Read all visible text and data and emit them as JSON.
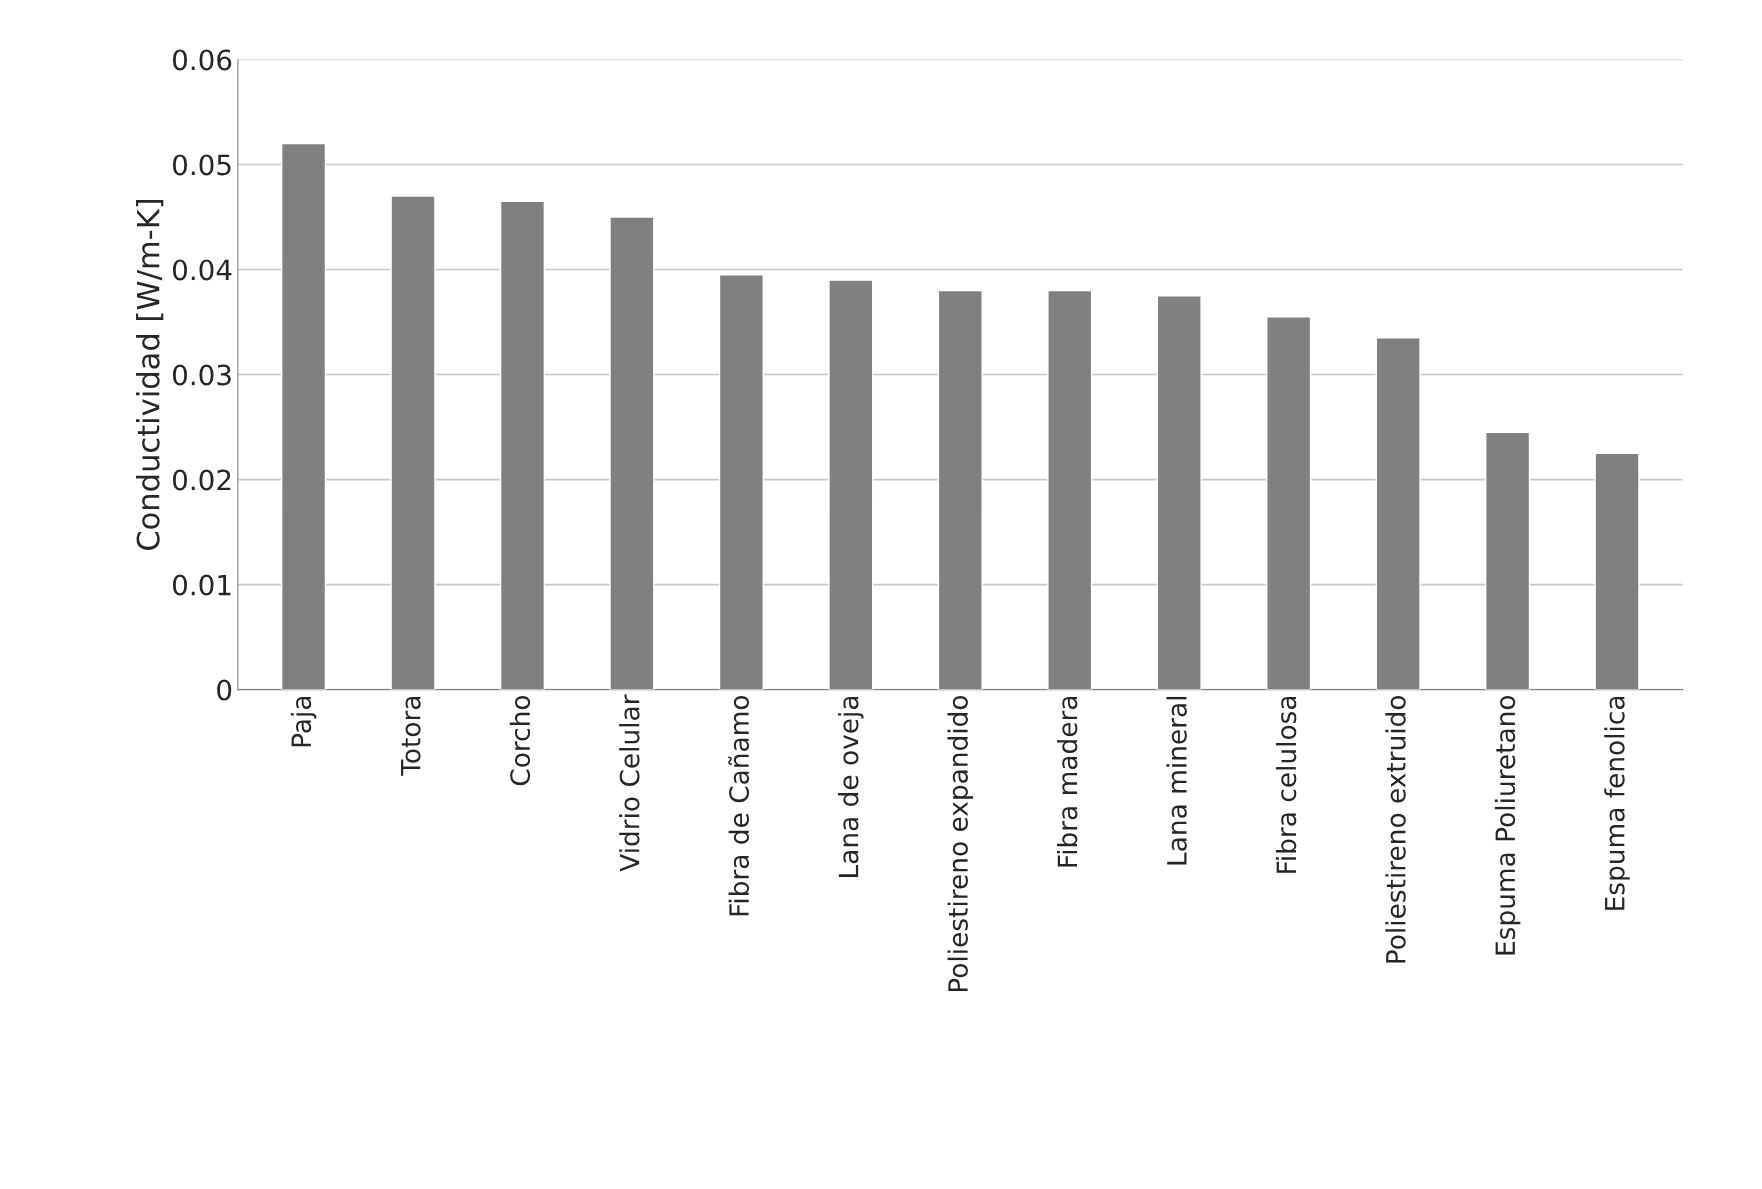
{
  "chart_data": {
    "type": "bar",
    "ylabel": "Conductividad [W/m-K]",
    "categories": [
      "Paja",
      "Totora",
      "Corcho",
      "Vidrio Celular",
      "Fibra de Cañamo",
      "Lana de oveja",
      "Poliestireno expandido",
      "Fibra madera",
      "Lana mineral",
      "Fibra celulosa",
      "Poliestireno extruido",
      "Espuma Poliuretano",
      "Espuma fenolica"
    ],
    "values": [
      0.052,
      0.047,
      0.0465,
      0.045,
      0.0395,
      0.039,
      0.038,
      0.038,
      0.0375,
      0.0355,
      0.0335,
      0.0245,
      0.0225
    ],
    "color": "#808080",
    "ylim": [
      0,
      0.06
    ],
    "yticks": [
      0,
      0.01,
      0.02,
      0.03,
      0.04,
      0.05,
      0.06
    ],
    "grid": "y"
  }
}
